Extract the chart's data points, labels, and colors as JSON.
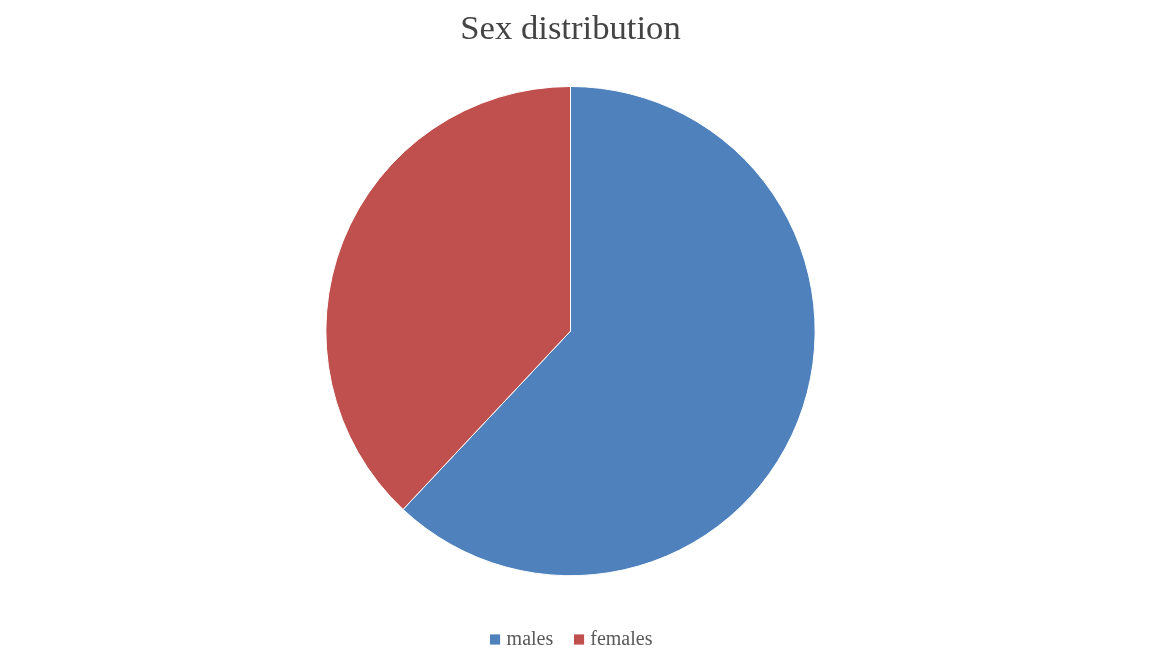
{
  "chart_data": {
    "type": "pie",
    "title": "Sex distribution",
    "categories": [
      "males",
      "females"
    ],
    "values": [
      62,
      38
    ],
    "colors": [
      "#4f81bd",
      "#c0504d"
    ],
    "legend": "bottom"
  }
}
